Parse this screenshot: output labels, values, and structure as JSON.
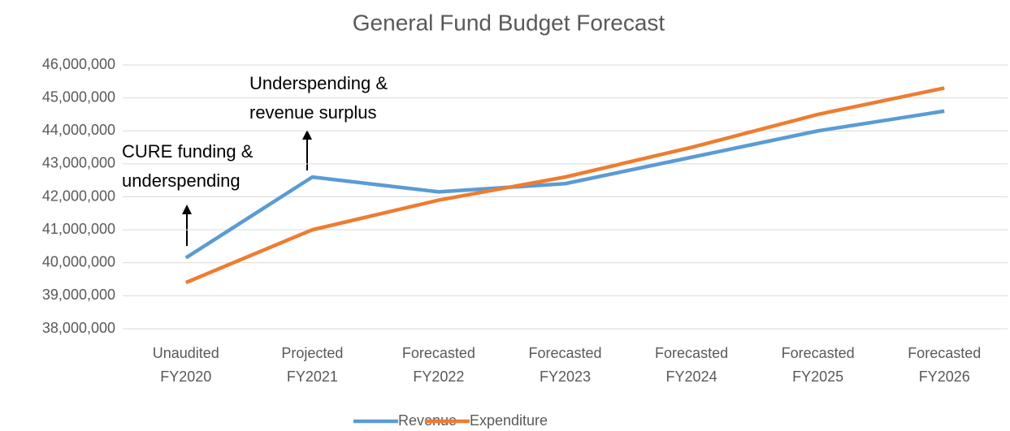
{
  "chart_data": {
    "type": "line",
    "title": "General Fund Budget Forecast",
    "categories": [
      [
        "Unaudited",
        "FY2020"
      ],
      [
        "Projected",
        "FY2021"
      ],
      [
        "Forecasted",
        "FY2022"
      ],
      [
        "Forecasted",
        "FY2023"
      ],
      [
        "Forecasted",
        "FY2024"
      ],
      [
        "Forecasted",
        "FY2025"
      ],
      [
        "Forecasted",
        "FY2026"
      ]
    ],
    "series": [
      {
        "name": "Revenue",
        "color": "#5b9bd5",
        "values": [
          40150000,
          42600000,
          42150000,
          42400000,
          43200000,
          44000000,
          44600000
        ]
      },
      {
        "name": "Expenditure",
        "color": "#ed7d31",
        "values": [
          39400000,
          41000000,
          41900000,
          42600000,
          43500000,
          44500000,
          45300000
        ]
      }
    ],
    "ylim": [
      38000000,
      46000000
    ],
    "yticks": [
      {
        "value": 38000000,
        "label": "38,000,000"
      },
      {
        "value": 39000000,
        "label": "39,000,000"
      },
      {
        "value": 40000000,
        "label": "40,000,000"
      },
      {
        "value": 41000000,
        "label": "41,000,000"
      },
      {
        "value": 42000000,
        "label": "42,000,000"
      },
      {
        "value": 43000000,
        "label": "43,000,000"
      },
      {
        "value": 44000000,
        "label": "44,000,000"
      },
      {
        "value": 45000000,
        "label": "45,000,000"
      },
      {
        "value": 46000000,
        "label": "46,000,000"
      }
    ],
    "grid": true,
    "legend": "bottom",
    "annotations": [
      {
        "lines": [
          "CURE funding &",
          "underspending"
        ]
      },
      {
        "lines": [
          "Underspending &",
          "revenue surplus"
        ]
      }
    ]
  }
}
